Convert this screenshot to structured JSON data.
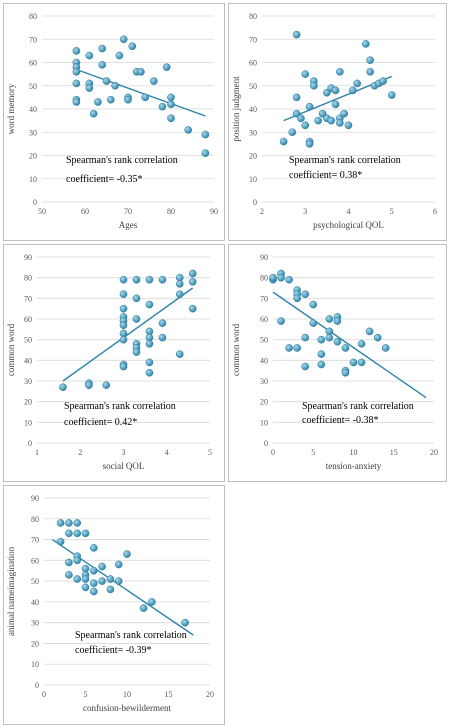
{
  "chart_data": [
    {
      "type": "scatter",
      "xlabel": "Ages",
      "ylabel": "word memory",
      "xlim": [
        50,
        90
      ],
      "ylim": [
        0,
        80
      ],
      "xticks": [
        50,
        60,
        70,
        80,
        90
      ],
      "yticks": [
        0,
        10,
        20,
        30,
        40,
        50,
        60,
        70,
        80
      ],
      "grid": "horizontal",
      "annotation": [
        "Spearman's rank correlation",
        "coefficient= -0.35*"
      ],
      "points": [
        [
          58,
          65
        ],
        [
          58,
          60
        ],
        [
          58,
          58
        ],
        [
          58,
          56
        ],
        [
          58,
          51
        ],
        [
          58,
          44
        ],
        [
          58,
          43
        ],
        [
          61,
          63
        ],
        [
          61,
          51
        ],
        [
          61,
          49
        ],
        [
          62,
          38
        ],
        [
          63,
          43
        ],
        [
          64,
          66
        ],
        [
          64,
          59
        ],
        [
          65,
          52
        ],
        [
          66,
          44
        ],
        [
          67,
          50
        ],
        [
          68,
          63
        ],
        [
          69,
          70
        ],
        [
          70,
          45
        ],
        [
          70,
          44
        ],
        [
          71,
          67
        ],
        [
          72,
          56
        ],
        [
          73,
          56
        ],
        [
          74,
          45
        ],
        [
          76,
          52
        ],
        [
          78,
          41
        ],
        [
          79,
          58
        ],
        [
          80,
          45
        ],
        [
          80,
          42
        ],
        [
          80,
          36
        ],
        [
          84,
          31
        ],
        [
          88,
          29
        ],
        [
          88,
          21
        ]
      ],
      "color": "#2e86ab",
      "trendline": [
        [
          58,
          57
        ],
        [
          88,
          37
        ]
      ]
    },
    {
      "type": "scatter",
      "xlabel": "psychological QOL",
      "ylabel": "position judgment",
      "xlim": [
        2,
        6
      ],
      "ylim": [
        0,
        80
      ],
      "xticks": [
        2,
        3,
        4,
        5,
        6
      ],
      "yticks": [
        0,
        10,
        20,
        30,
        40,
        50,
        60,
        70,
        80
      ],
      "grid": "horizontal",
      "annotation": [
        "Spearman's rank correlation",
        "coefficient= 0.38*"
      ],
      "points": [
        [
          2.5,
          26
        ],
        [
          2.7,
          30
        ],
        [
          2.8,
          72
        ],
        [
          2.8,
          45
        ],
        [
          2.8,
          38
        ],
        [
          2.9,
          36
        ],
        [
          3.0,
          55
        ],
        [
          3.0,
          33
        ],
        [
          3.1,
          41
        ],
        [
          3.1,
          26
        ],
        [
          3.1,
          25
        ],
        [
          3.2,
          52
        ],
        [
          3.2,
          50
        ],
        [
          3.3,
          35
        ],
        [
          3.4,
          38
        ],
        [
          3.5,
          47
        ],
        [
          3.5,
          36
        ],
        [
          3.6,
          35
        ],
        [
          3.6,
          49
        ],
        [
          3.7,
          48
        ],
        [
          3.7,
          42
        ],
        [
          3.8,
          36
        ],
        [
          3.8,
          34
        ],
        [
          3.8,
          56
        ],
        [
          3.9,
          38
        ],
        [
          4.0,
          33
        ],
        [
          4.1,
          48
        ],
        [
          4.2,
          51
        ],
        [
          4.4,
          68
        ],
        [
          4.5,
          61
        ],
        [
          4.5,
          56
        ],
        [
          4.6,
          50
        ],
        [
          4.7,
          51
        ],
        [
          4.8,
          52
        ],
        [
          5.0,
          46
        ]
      ],
      "color": "#2e86ab",
      "trendline": [
        [
          2.5,
          35
        ],
        [
          5.0,
          54
        ]
      ]
    },
    {
      "type": "scatter",
      "xlabel": "social QOL",
      "ylabel": "common word",
      "xlim": [
        1,
        5
      ],
      "ylim": [
        0,
        90
      ],
      "xticks": [
        1,
        2,
        3,
        4,
        5
      ],
      "yticks": [
        0,
        10,
        20,
        30,
        40,
        50,
        60,
        70,
        80,
        90
      ],
      "grid": "horizontal",
      "annotation": [
        "Spearman's rank correlation",
        "coefficient= 0.42*"
      ],
      "points": [
        [
          1.6,
          27
        ],
        [
          2.2,
          29
        ],
        [
          2.2,
          28
        ],
        [
          2.6,
          28
        ],
        [
          3.0,
          79
        ],
        [
          3.0,
          72
        ],
        [
          3.0,
          65
        ],
        [
          3.0,
          61
        ],
        [
          3.0,
          59
        ],
        [
          3.0,
          57
        ],
        [
          3.0,
          53
        ],
        [
          3.0,
          50
        ],
        [
          3.0,
          38
        ],
        [
          3.0,
          37
        ],
        [
          3.3,
          79
        ],
        [
          3.3,
          70
        ],
        [
          3.3,
          60
        ],
        [
          3.3,
          48
        ],
        [
          3.3,
          46
        ],
        [
          3.3,
          44
        ],
        [
          3.6,
          79
        ],
        [
          3.6,
          67
        ],
        [
          3.6,
          54
        ],
        [
          3.6,
          51
        ],
        [
          3.6,
          48
        ],
        [
          3.6,
          39
        ],
        [
          3.6,
          34
        ],
        [
          3.9,
          79
        ],
        [
          3.9,
          58
        ],
        [
          3.9,
          51
        ],
        [
          4.3,
          80
        ],
        [
          4.3,
          77
        ],
        [
          4.3,
          72
        ],
        [
          4.3,
          43
        ],
        [
          4.6,
          82
        ],
        [
          4.6,
          78
        ],
        [
          4.6,
          65
        ]
      ],
      "color": "#2e86ab",
      "trendline": [
        [
          1.6,
          30
        ],
        [
          4.6,
          75
        ]
      ]
    },
    {
      "type": "scatter",
      "xlabel": "tension-anxiety",
      "ylabel": "common word",
      "xlim": [
        0,
        20
      ],
      "ylim": [
        0,
        90
      ],
      "xticks": [
        0,
        5,
        10,
        15,
        20
      ],
      "yticks": [
        0,
        10,
        20,
        30,
        40,
        50,
        60,
        70,
        80,
        90
      ],
      "grid": "horizontal",
      "annotation": [
        "Spearman's rank correlation",
        "coefficient= -0.38*"
      ],
      "points": [
        [
          0,
          79
        ],
        [
          0,
          80
        ],
        [
          1,
          82
        ],
        [
          1,
          80
        ],
        [
          1,
          59
        ],
        [
          2,
          79
        ],
        [
          2,
          46
        ],
        [
          3,
          74
        ],
        [
          3,
          72
        ],
        [
          3,
          70
        ],
        [
          3,
          46
        ],
        [
          4,
          72
        ],
        [
          4,
          51
        ],
        [
          4,
          37
        ],
        [
          5,
          67
        ],
        [
          5,
          58
        ],
        [
          6,
          50
        ],
        [
          6,
          43
        ],
        [
          6,
          38
        ],
        [
          7,
          60
        ],
        [
          7,
          54
        ],
        [
          7,
          51
        ],
        [
          8,
          61
        ],
        [
          8,
          59
        ],
        [
          8,
          49
        ],
        [
          9,
          46
        ],
        [
          9,
          35
        ],
        [
          9,
          34
        ],
        [
          10,
          39
        ],
        [
          11,
          48
        ],
        [
          11,
          39
        ],
        [
          12,
          54
        ],
        [
          13,
          51
        ],
        [
          14,
          46
        ]
      ],
      "color": "#2e86ab",
      "trendline": [
        [
          0,
          73
        ],
        [
          19,
          22
        ]
      ]
    },
    {
      "type": "scatter",
      "xlabel": "confusion-bewilderment",
      "ylabel": "animal nameimagination",
      "xlim": [
        0,
        20
      ],
      "ylim": [
        0,
        90
      ],
      "xticks": [
        0,
        5,
        10,
        15,
        20
      ],
      "yticks": [
        0,
        10,
        20,
        30,
        40,
        50,
        60,
        70,
        80,
        90
      ],
      "grid": "horizontal",
      "annotation": [
        "Spearman's rank correlation",
        "coefficient= -0.39*"
      ],
      "points": [
        [
          2,
          78
        ],
        [
          2,
          69
        ],
        [
          3,
          78
        ],
        [
          3,
          73
        ],
        [
          3,
          59
        ],
        [
          3,
          53
        ],
        [
          4,
          78
        ],
        [
          4,
          73
        ],
        [
          4,
          62
        ],
        [
          4,
          60
        ],
        [
          4,
          51
        ],
        [
          5,
          73
        ],
        [
          5,
          56
        ],
        [
          5,
          53
        ],
        [
          5,
          51
        ],
        [
          5,
          47
        ],
        [
          6,
          66
        ],
        [
          6,
          55
        ],
        [
          6,
          49
        ],
        [
          6,
          45
        ],
        [
          7,
          57
        ],
        [
          7,
          50
        ],
        [
          8,
          51
        ],
        [
          8,
          46
        ],
        [
          9,
          58
        ],
        [
          9,
          50
        ],
        [
          10,
          63
        ],
        [
          12,
          37
        ],
        [
          13,
          40
        ],
        [
          17,
          30
        ]
      ],
      "color": "#2e86ab",
      "trendline": [
        [
          1,
          70
        ],
        [
          18,
          24
        ]
      ]
    }
  ]
}
